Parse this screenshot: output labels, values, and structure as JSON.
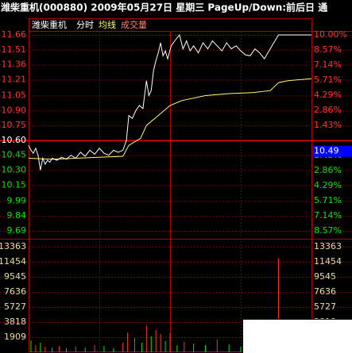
{
  "title": "潍柴重机(000880) 2009年05月27日 星期三 PageUp/Down:前后日 通",
  "chart_data": {
    "type": "intraday",
    "name": "潍柴重机",
    "view": "分时",
    "avg_label": "均线",
    "volume_label": "成交量",
    "xlim": [
      0,
      240
    ],
    "ylim": [
      9.69,
      11.66
    ],
    "base": 10.6,
    "yticks": [
      11.66,
      11.51,
      11.36,
      11.21,
      11.05,
      {
        "value": 10.9,
        "label": "10.90"
      },
      10.75,
      {
        "value": 10.6,
        "label": "10.60"
      },
      10.45,
      {
        "value": 10.3,
        "label": "10.30"
      },
      10.15,
      9.99,
      9.84,
      9.69
    ],
    "y2lim": [
      -8.57,
      10.0
    ],
    "y2ticks": [
      {
        "value": 10,
        "label": "10.00%"
      },
      {
        "value": 8.57,
        "label": "8.57%"
      },
      {
        "value": 7.14,
        "label": "7.14%"
      },
      {
        "value": 5.71,
        "label": "5.71%"
      },
      {
        "value": 4.29,
        "label": "4.29%"
      },
      {
        "value": 2.86,
        "label": "2.86%"
      },
      {
        "value": 1.43,
        "label": "1.43%"
      },
      {
        "value": -1.43,
        "label": "1.43%"
      },
      {
        "value": -2.86,
        "label": "2.86%"
      },
      {
        "value": -4.29,
        "label": "4.29%"
      },
      {
        "value": -5.71,
        "label": "5.71%"
      },
      {
        "value": -7.14,
        "label": "7.14%"
      },
      {
        "value": -8.57,
        "label": "8.57%"
      }
    ],
    "cursor_value": 10.49,
    "price": {
      "color": "#ffffff",
      "x": [
        0,
        2,
        4,
        6,
        8,
        10,
        12,
        14,
        16,
        18,
        20,
        24,
        28,
        32,
        36,
        40,
        44,
        48,
        52,
        56,
        60,
        64,
        68,
        72,
        76,
        80,
        83,
        85,
        88,
        91,
        94,
        97,
        100,
        102,
        104,
        106,
        108,
        110,
        112,
        114,
        116,
        118,
        121,
        124,
        128,
        131,
        134,
        137,
        140,
        144,
        148,
        152,
        156,
        160,
        164,
        168,
        172,
        176,
        180,
        184,
        188,
        192,
        196,
        200,
        204,
        208,
        212,
        240
      ],
      "values": [
        10.55,
        10.5,
        10.47,
        10.52,
        10.45,
        10.3,
        10.42,
        10.36,
        10.4,
        10.38,
        10.42,
        10.4,
        10.43,
        10.41,
        10.45,
        10.42,
        10.48,
        10.44,
        10.5,
        10.46,
        10.52,
        10.47,
        10.45,
        10.5,
        10.48,
        10.5,
        10.6,
        10.85,
        10.82,
        10.9,
        10.95,
        10.92,
        11.2,
        11.05,
        11.1,
        11.3,
        11.4,
        11.48,
        11.58,
        11.45,
        11.5,
        11.42,
        11.55,
        11.6,
        11.66,
        11.52,
        11.6,
        11.5,
        11.55,
        11.48,
        11.58,
        11.52,
        11.6,
        11.55,
        11.5,
        11.58,
        11.52,
        11.55,
        11.5,
        11.46,
        11.45,
        11.52,
        11.48,
        11.42,
        11.5,
        11.58,
        11.66,
        11.66
      ]
    },
    "average": {
      "color": "#ffff66",
      "x": [
        0,
        20,
        40,
        60,
        80,
        85,
        95,
        100,
        110,
        120,
        130,
        150,
        170,
        190,
        205,
        212,
        220,
        240
      ],
      "values": [
        10.42,
        10.41,
        10.42,
        10.43,
        10.44,
        10.55,
        10.62,
        10.75,
        10.85,
        10.95,
        11.0,
        11.05,
        11.07,
        11.08,
        11.1,
        11.18,
        11.2,
        11.22
      ]
    },
    "volume": {
      "ylim": [
        0,
        13363
      ],
      "yticks": [
        13363,
        11454,
        9545,
        7636,
        5727,
        3818,
        1909
      ],
      "x": [
        2,
        6,
        10,
        14,
        20,
        26,
        32,
        40,
        48,
        56,
        64,
        72,
        80,
        84,
        90,
        96,
        100,
        104,
        108,
        112,
        116,
        120,
        126,
        132,
        140,
        150,
        160,
        170,
        180,
        190,
        200,
        206,
        212,
        216
      ],
      "values": [
        1500,
        900,
        1200,
        700,
        600,
        800,
        500,
        700,
        600,
        900,
        800,
        500,
        1200,
        2500,
        1800,
        1200,
        3400,
        2000,
        2800,
        2300,
        1400,
        2400,
        900,
        1300,
        1100,
        900,
        1600,
        1000,
        700,
        1100,
        1300,
        2000,
        11900,
        1000
      ],
      "colors": [
        "#00e600",
        "#ff3232",
        "#00e600",
        "#ff3232",
        "#00e600",
        "#ff3232",
        "#00e600",
        "#ff3232",
        "#00e600",
        "#ff3232",
        "#00e600",
        "#00e600",
        "#ff3232",
        "#ff3232",
        "#ff3232",
        "#00e600",
        "#ff3232",
        "#00e600",
        "#ff3232",
        "#ff3232",
        "#00e600",
        "#ff3232",
        "#00e600",
        "#ff3232",
        "#00e600",
        "#00e600",
        "#ff3232",
        "#00e600",
        "#00e600",
        "#ff3232",
        "#ff3232",
        "#ff3232",
        "#ff3232",
        "#ff3232"
      ]
    }
  }
}
